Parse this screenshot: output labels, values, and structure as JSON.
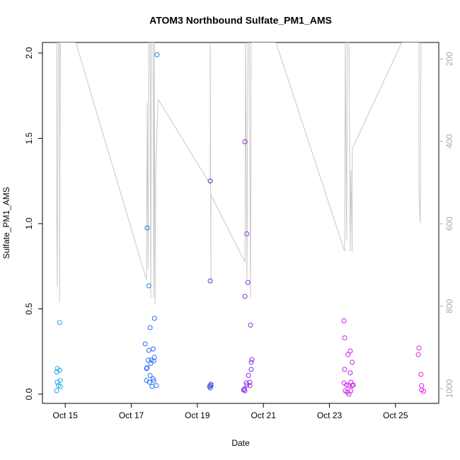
{
  "chart_data": {
    "type": "scatter",
    "title": "ATOM3 Northbound Sulfate_PM1_AMS",
    "x_label": "Date",
    "y_label": "Sulfate_PM1_AMS",
    "xlim": [
      14.31,
      26.31
    ],
    "xticks": [
      {
        "value": 15,
        "label": "Oct 15"
      },
      {
        "value": 17,
        "label": "Oct 17"
      },
      {
        "value": 19,
        "label": "Oct 19"
      },
      {
        "value": 21,
        "label": "Oct 21"
      },
      {
        "value": 23,
        "label": "Oct 23"
      },
      {
        "value": 25,
        "label": "Oct 25"
      }
    ],
    "ylim": [
      -0.054,
      2.062
    ],
    "yticks": [
      {
        "value": 0,
        "label": "0.0"
      },
      {
        "value": 0.5,
        "label": "0.5"
      },
      {
        "value": 1,
        "label": "1.0"
      },
      {
        "value": 1.5,
        "label": "1.5"
      },
      {
        "value": 2,
        "label": "2.0"
      }
    ],
    "y2lim": [
      1036,
      160
    ],
    "y2ticks": [
      200,
      400,
      600,
      800,
      1000
    ],
    "y2_color": "#aaaaaa",
    "series": [
      {
        "color": "#1ea8ec",
        "x": [
          14.83,
          14.76,
          14.74,
          14.83,
          14.76,
          14.85,
          14.79,
          14.85,
          14.74
        ],
        "values": [
          0.42,
          0.15,
          0.13,
          0.14,
          0.07,
          0.08,
          0.05,
          0.045,
          0.02
        ]
      },
      {
        "color": "#2a70f0",
        "x": [
          17.78,
          17.48,
          17.53,
          17.7,
          17.57,
          17.42,
          17.53,
          17.66,
          17.7,
          17.61,
          17.51,
          17.68,
          17.59,
          17.48,
          17.46,
          17.57,
          17.46,
          17.66,
          17.55,
          17.68,
          17.76,
          17.63
        ],
        "values": [
          1.99,
          0.975,
          0.635,
          0.445,
          0.39,
          0.295,
          0.257,
          0.265,
          0.216,
          0.2,
          0.2,
          0.195,
          0.18,
          0.155,
          0.15,
          0.11,
          0.08,
          0.09,
          0.07,
          0.078,
          0.05,
          0.045
        ]
      },
      {
        "color": "#3b3be8",
        "x": [
          19.39,
          19.39,
          19.41,
          19.41,
          19.39,
          19.37
        ],
        "values": [
          1.25,
          0.664,
          0.058,
          0.05,
          0.037,
          0.046
        ]
      },
      {
        "color": "#8b2be8",
        "x": [
          20.44,
          20.5,
          20.53,
          20.44,
          20.61,
          20.65,
          20.63,
          20.63,
          20.55,
          20.59,
          20.5,
          20.59,
          20.48,
          20.42,
          20.44,
          20.4
        ],
        "values": [
          1.48,
          0.94,
          0.655,
          0.573,
          0.405,
          0.203,
          0.187,
          0.145,
          0.11,
          0.07,
          0.054,
          0.05,
          0.066,
          0.03,
          0.02,
          0.025
        ]
      },
      {
        "color": "#c71fe8",
        "x": [
          23.44,
          23.46,
          23.63,
          23.56,
          23.69,
          23.46,
          23.63,
          23.44,
          23.52,
          23.65,
          23.59,
          23.72,
          23.48,
          23.54,
          23.65,
          23.59,
          23.69
        ],
        "values": [
          0.43,
          0.33,
          0.253,
          0.232,
          0.187,
          0.145,
          0.125,
          0.066,
          0.054,
          0.07,
          0.05,
          0.054,
          0.02,
          0.012,
          0.02,
          0,
          0.05
        ]
      },
      {
        "color": "#e61fe0",
        "x": [
          25.71,
          25.69,
          25.77,
          25.79,
          25.79,
          25.85
        ],
        "values": [
          0.27,
          0.232,
          0.116,
          0.05,
          0.025,
          0.017
        ]
      },
      {
        "axis": "y2",
        "type": "line",
        "color": "#c8c8c8",
        "x": [
          14.74,
          14.74,
          14.76,
          14.79,
          14.83,
          14.83,
          14.85,
          15.32,
          17.46,
          17.48,
          17.51,
          17.53,
          17.57,
          17.59,
          17.61,
          17.66,
          17.68,
          17.7,
          17.72,
          17.74,
          17.81,
          19.39,
          19.39,
          19.41,
          19.41,
          20.44,
          20.46,
          20.5,
          20.53,
          20.57,
          20.61,
          20.63,
          21.38,
          23.46,
          23.48,
          23.52,
          23.54,
          23.59,
          23.63,
          23.65,
          23.69,
          23.69,
          25.19,
          25.71,
          25.71,
          25.75,
          25.77,
          25.79
        ],
        "values": [
          160,
          530,
          753,
          160,
          160,
          792,
          160,
          160,
          736,
          306,
          710,
          160,
          160,
          779,
          160,
          160,
          779,
          160,
          796,
          470,
          298,
          504,
          160,
          741,
          530,
          693,
          160,
          736,
          160,
          160,
          779,
          160,
          160,
          667,
          160,
          641,
          160,
          160,
          667,
          470,
          667,
          418,
          160,
          160,
          530,
          598,
          160,
          160
        ]
      }
    ]
  }
}
